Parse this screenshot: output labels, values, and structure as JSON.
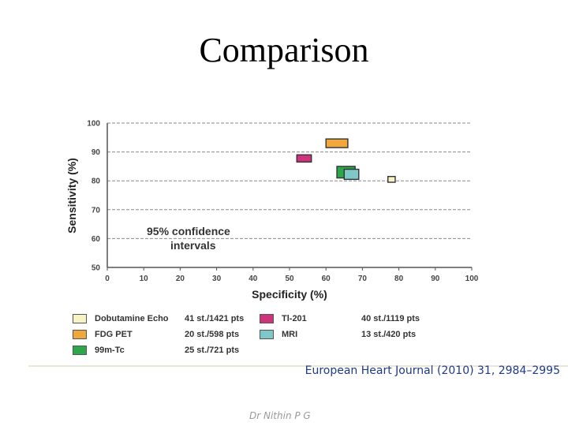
{
  "slide": {
    "title": "Comparison",
    "citation": "European Heart Journal (2010) 31, 2984–2995",
    "footer": "Dr Nithin P G"
  },
  "chart_data": {
    "type": "scatter",
    "marker": "confidence-rectangle",
    "xlabel": "Specificity (%)",
    "ylabel": "Sensitivity (%)",
    "xlim": [
      0,
      100
    ],
    "ylim": [
      50,
      100
    ],
    "xticks": [
      0,
      10,
      20,
      30,
      40,
      50,
      60,
      70,
      80,
      90,
      100
    ],
    "yticks": [
      50,
      60,
      70,
      80,
      90,
      100
    ],
    "grid": true,
    "annotation": [
      "95%  confidence",
      "intervals"
    ],
    "series": [
      {
        "name": "Dobutamine Echo",
        "stat": "41 st./1421 pts",
        "color": "#f8f3c4",
        "x": [
          77,
          79
        ],
        "y": [
          79.5,
          81.5
        ]
      },
      {
        "name": "FDG PET",
        "stat": "20 st./598 pts",
        "color": "#f0a83c",
        "x": [
          60,
          66
        ],
        "y": [
          91.5,
          94.5
        ]
      },
      {
        "name": "99m-Tc",
        "stat": "25 st./721 pts",
        "color": "#2aa84a",
        "x": [
          63,
          68
        ],
        "y": [
          81,
          85
        ]
      },
      {
        "name": "Tl-201",
        "stat": "40 st./1119 pts",
        "color": "#d0337e",
        "x": [
          52,
          56
        ],
        "y": [
          86.5,
          89
        ]
      },
      {
        "name": "MRI",
        "stat": "13 st./420 pts",
        "color": "#7ec8c8",
        "x": [
          65,
          69
        ],
        "y": [
          80.5,
          84
        ]
      }
    ]
  }
}
